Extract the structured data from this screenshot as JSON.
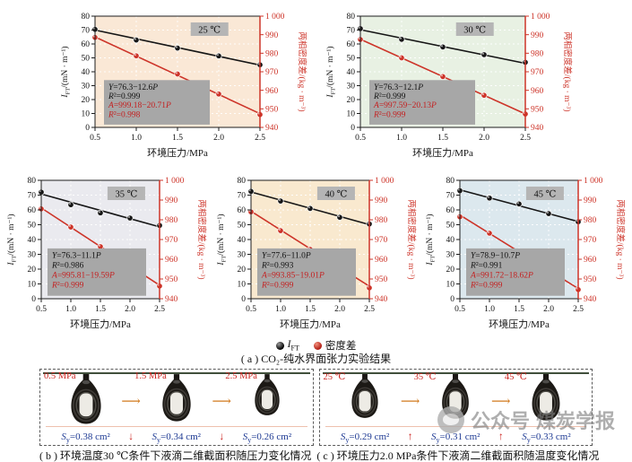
{
  "colors": {
    "red_line": "#cd3429",
    "red_text": "#c41f1f",
    "black_line": "#161616",
    "eq_box": "#a7a7a7",
    "temp_box": "#b5b5b5",
    "grid": "rgba(255,255,255,0.9)",
    "blue_area_text": "#1e3a93",
    "orange_arrow": "#d27a1e"
  },
  "axes": {
    "xlabel": "环境压力/MPa",
    "ylabel_left": {
      "italic": "I",
      "sub": "FT",
      "rest": "/(mN · m⁻¹)"
    },
    "ylabel_right": "两相密度差/(kg · m⁻³)",
    "xlim": [
      0.5,
      2.5
    ],
    "ylim_left": [
      0,
      80
    ],
    "ylim_right": [
      940,
      1000
    ],
    "x_ticks": [
      0.5,
      1.0,
      1.5,
      2.0,
      2.5
    ],
    "left_ticks": [
      0,
      10,
      20,
      30,
      40,
      50,
      60,
      70,
      80
    ],
    "right_ticks": [
      940,
      950,
      960,
      970,
      980,
      990,
      1000
    ],
    "right_tick_labels": [
      "940",
      "950",
      "960",
      "970",
      "980",
      "990",
      "1 000"
    ]
  },
  "chart_data": [
    {
      "type": "line",
      "temp_label": "25 ℃",
      "bg": "#fae8d6",
      "x": [
        0.5,
        1.0,
        1.5,
        2.0,
        2.5
      ],
      "series": [
        {
          "name": "IFT",
          "axis": "left",
          "color": "black",
          "values": [
            70.5,
            62.8,
            57.0,
            51.4,
            45.0
          ],
          "fit": {
            "intercept": 76.3,
            "slope": -12.6
          }
        },
        {
          "name": "密度差",
          "axis": "right",
          "color": "red",
          "values": [
            988.5,
            978.6,
            968.8,
            958.0,
            946.9
          ],
          "fit": {
            "intercept": 999.18,
            "slope": -20.71
          }
        }
      ],
      "equations": {
        "black1": "Y=76.3−12.6P",
        "black2": "R²=0.999",
        "red1": "A=999.18−20.71P",
        "red2": "R²=0.998"
      }
    },
    {
      "type": "line",
      "temp_label": "30 ℃",
      "bg": "#e8f1e3",
      "x": [
        0.5,
        1.0,
        1.5,
        2.0,
        2.5
      ],
      "series": [
        {
          "name": "IFT",
          "axis": "left",
          "color": "black",
          "values": [
            71.0,
            63.3,
            57.8,
            52.3,
            46.8
          ],
          "fit": {
            "intercept": 76.3,
            "slope": -12.1
          }
        },
        {
          "name": "密度差",
          "axis": "right",
          "color": "red",
          "values": [
            987.4,
            977.5,
            967.4,
            957.3,
            947.2
          ],
          "fit": {
            "intercept": 997.59,
            "slope": -20.13
          }
        }
      ],
      "equations": {
        "black1": "Y=76.3−12.1P",
        "black2": "R²=0.999",
        "red1": "A=997.59−20.13P",
        "red2": "R²=0.999"
      }
    },
    {
      "type": "line",
      "temp_label": "35 ℃",
      "bg": "#eaeaef",
      "x": [
        0.5,
        1.0,
        1.5,
        2.0,
        2.5
      ],
      "series": [
        {
          "name": "IFT",
          "axis": "left",
          "color": "black",
          "values": [
            72.0,
            63.5,
            58.0,
            54.5,
            49.5
          ],
          "fit": {
            "intercept": 76.3,
            "slope": -11.1
          }
        },
        {
          "name": "密度差",
          "axis": "right",
          "color": "red",
          "values": [
            985.5,
            976.3,
            966.4,
            956.8,
            946.4
          ],
          "fit": {
            "intercept": 995.81,
            "slope": -19.59
          }
        }
      ],
      "equations": {
        "black1": "Y=76.3−11.1P",
        "black2": "R²=0.986",
        "red1": "A=995.81−19.59P",
        "red2": "R²=0.999"
      }
    },
    {
      "type": "line",
      "temp_label": "40 ℃",
      "bg": "#f9e9cf",
      "x": [
        0.5,
        1.0,
        1.5,
        2.0,
        2.5
      ],
      "series": [
        {
          "name": "IFT",
          "axis": "left",
          "color": "black",
          "values": [
            72.5,
            66.0,
            61.0,
            55.0,
            50.5
          ],
          "fit": {
            "intercept": 77.6,
            "slope": -11.0
          }
        },
        {
          "name": "密度差",
          "axis": "right",
          "color": "red",
          "values": [
            984.0,
            974.5,
            965.0,
            955.5,
            945.5
          ],
          "fit": {
            "intercept": 993.85,
            "slope": -19.01
          }
        }
      ],
      "equations": {
        "black1": "Y=77.6−11.0P",
        "black2": "R²=0.993",
        "red1": "A=993.85−19.01P",
        "red2": "R²=0.999"
      }
    },
    {
      "type": "line",
      "temp_label": "45 ℃",
      "bg": "#dce8ee",
      "x": [
        0.5,
        1.0,
        1.5,
        2.0,
        2.5
      ],
      "series": [
        {
          "name": "IFT",
          "axis": "left",
          "color": "black",
          "values": [
            73.0,
            68.0,
            64.0,
            57.5,
            52.0
          ],
          "fit": {
            "intercept": 78.9,
            "slope": -10.7
          }
        },
        {
          "name": "密度差",
          "axis": "right",
          "color": "red",
          "values": [
            981.5,
            973.2,
            963.9,
            954.3,
            944.6
          ],
          "fit": {
            "intercept": 991.72,
            "slope": -18.62
          }
        }
      ],
      "equations": {
        "black1": "Y=78.9−10.7P",
        "black2": "R²=0.991",
        "red1": "A=991.72−18.62P",
        "red2": "R²=0.999"
      }
    }
  ],
  "legend": {
    "ift": {
      "italic": "I",
      "sub": "FT"
    },
    "density_label": "密度差"
  },
  "caption_a": "( a ) CO₂-纯水界面张力实验结果",
  "panel_b": {
    "between_arrow": "⟶",
    "area_arrow": "↓",
    "cells": [
      {
        "label": "0.5 MPa",
        "s_sym": "S",
        "s_sub": "y",
        "area_rest": "=0.38 cm²",
        "area_value": 0.38
      },
      {
        "label": "1.5 MPa",
        "s_sym": "S",
        "s_sub": "y",
        "area_rest": "=0.34 cm²",
        "area_value": 0.34
      },
      {
        "label": "2.5 MPa",
        "s_sym": "S",
        "s_sub": "y",
        "area_rest": "=0.26 cm²",
        "area_value": 0.26
      }
    ],
    "caption": "( b ) 环境温度30 ℃条件下液滴二维截面积随压力变化情况"
  },
  "panel_c": {
    "between_arrow": "⟶",
    "area_arrow": "↑",
    "cells": [
      {
        "label": "25 ℃",
        "s_sym": "S",
        "s_sub": "y",
        "area_rest": "=0.29 cm²",
        "area_value": 0.29
      },
      {
        "label": "35 ℃",
        "s_sym": "S",
        "s_sub": "y",
        "area_rest": "=0.31 cm²",
        "area_value": 0.31
      },
      {
        "label": "45 ℃",
        "s_sym": "S",
        "s_sub": "y",
        "area_rest": "=0.33 cm²",
        "area_value": 0.33
      }
    ],
    "caption": "( c ) 环境压力2.0 MPa条件下液滴二维截面积随温度变化情况"
  },
  "watermark": {
    "text1": "公众号",
    "text2": "煤炭学报"
  }
}
